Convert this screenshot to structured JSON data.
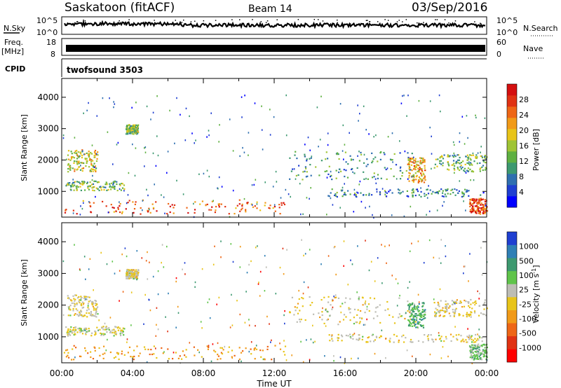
{
  "header": {
    "station": "Saskatoon (fitACF)",
    "beam": "Beam 14",
    "date": "03/Sep/2016"
  },
  "nsky_panel": {
    "left_label": "N.Sky",
    "right_label": "N.Search",
    "left_ticks": [
      "10^5",
      "10^0"
    ],
    "right_ticks": [
      "10^5",
      "10^0"
    ]
  },
  "freq_panel": {
    "left_label_line1": "Freq.",
    "left_label_line2": "[MHz]",
    "right_label": "Nave",
    "left_ticks": [
      "18",
      "8"
    ],
    "right_ticks": [
      "60",
      "0"
    ]
  },
  "cpid_panel": {
    "label": "CPID",
    "value": "twofsound 3503"
  },
  "x_axis": {
    "title": "Time UT",
    "ticks": [
      "00:00",
      "04:00",
      "08:00",
      "12:00",
      "16:00",
      "20:00",
      "00:00"
    ]
  },
  "chart_data": [
    {
      "type": "heatmap",
      "title": "",
      "xlabel": "Time UT",
      "ylabel": "Slant Range [km]",
      "xlim": [
        0,
        24
      ],
      "ylim": [
        180,
        4600
      ],
      "yticks": [
        "1000",
        "2000",
        "3000",
        "4000"
      ],
      "colorbar": {
        "label": "Power [dB]",
        "ticks": [
          "4",
          "8",
          "12",
          "16",
          "20",
          "24",
          "28"
        ],
        "colors": [
          "#0000ff",
          "#1f3fd1",
          "#2f6fb0",
          "#3d9970",
          "#5fb041",
          "#9fc434",
          "#e8c419",
          "#f19a18",
          "#ee6616",
          "#e03213",
          "#d40f0f"
        ]
      },
      "echo_regions": [
        {
          "t0": 0.1,
          "t1": 12.6,
          "r0": 300,
          "r1": 750,
          "level": 0.82
        },
        {
          "t0": 0.3,
          "t1": 2.0,
          "r0": 1650,
          "r1": 2350,
          "level": 0.55
        },
        {
          "t0": 3.6,
          "t1": 4.3,
          "r0": 2850,
          "r1": 3150,
          "level": 0.45
        },
        {
          "t0": 0.2,
          "t1": 3.5,
          "r0": 1050,
          "r1": 1350,
          "level": 0.42
        },
        {
          "t0": 12.8,
          "t1": 20.0,
          "r0": 1400,
          "r1": 2300,
          "level": 0.32
        },
        {
          "t0": 15.0,
          "t1": 23.8,
          "r0": 850,
          "r1": 1100,
          "level": 0.26
        },
        {
          "t0": 19.5,
          "t1": 20.5,
          "r0": 1300,
          "r1": 2100,
          "level": 0.65
        },
        {
          "t0": 21.0,
          "t1": 24.0,
          "r0": 1650,
          "r1": 2200,
          "level": 0.42
        },
        {
          "t0": 23.0,
          "t1": 24.0,
          "r0": 300,
          "r1": 800,
          "level": 0.88
        }
      ]
    },
    {
      "type": "heatmap",
      "title": "",
      "xlabel": "Time UT",
      "ylabel": "Slant Range [km]",
      "xlim": [
        0,
        24
      ],
      "ylim": [
        180,
        4600
      ],
      "yticks": [
        "1000",
        "2000",
        "3000",
        "4000"
      ],
      "colorbar": {
        "label": "Velocity [m s^-1]",
        "ticks": [
          "1000",
          "500",
          "100",
          "25",
          "-25",
          "-100",
          "-500",
          "-1000"
        ],
        "colors": [
          "#1f3fd1",
          "#2f7fb5",
          "#3d9970",
          "#5fc44a",
          "#bdbdb5",
          "#e8c419",
          "#f19a18",
          "#ee6616",
          "#e03213",
          "#ff0000"
        ]
      },
      "echo_regions": [
        {
          "t0": 0.1,
          "t1": 12.6,
          "r0": 300,
          "r1": 750,
          "level": -0.3
        },
        {
          "t0": 0.3,
          "t1": 2.0,
          "r0": 1650,
          "r1": 2350,
          "level": 0.0
        },
        {
          "t0": 3.6,
          "t1": 4.3,
          "r0": 2850,
          "r1": 3150,
          "level": 0.0
        },
        {
          "t0": 0.2,
          "t1": 3.5,
          "r0": 1050,
          "r1": 1350,
          "level": 0.05
        },
        {
          "t0": 12.8,
          "t1": 20.0,
          "r0": 1400,
          "r1": 2300,
          "level": 0.0
        },
        {
          "t0": 15.0,
          "t1": 23.8,
          "r0": 850,
          "r1": 1100,
          "level": 0.0
        },
        {
          "t0": 19.5,
          "t1": 20.5,
          "r0": 1300,
          "r1": 2100,
          "level": 0.45
        },
        {
          "t0": 21.0,
          "t1": 24.0,
          "r0": 1650,
          "r1": 2200,
          "level": 0.0
        },
        {
          "t0": 23.0,
          "t1": 24.0,
          "r0": 300,
          "r1": 800,
          "level": 0.3
        }
      ]
    }
  ]
}
